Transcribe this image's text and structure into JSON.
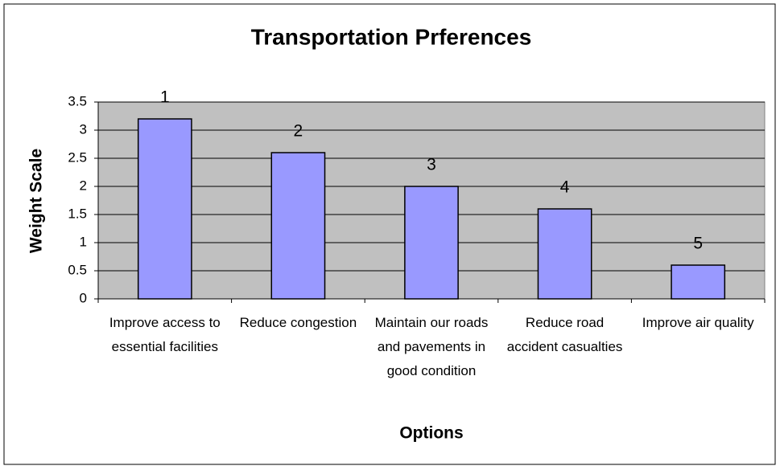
{
  "chart_data": {
    "type": "bar",
    "title": "Transportation Prferences",
    "x_label": "Options",
    "y_label": "Weight Scale",
    "categories": [
      "Improve access to essential facilities",
      "Reduce congestion",
      "Maintain our roads and pavements in good condition",
      "Reduce road accident casualties",
      "Improve air quality"
    ],
    "values": [
      3.2,
      2.6,
      2.0,
      1.6,
      0.6
    ],
    "rank_labels": [
      "1",
      "2",
      "3",
      "4",
      "5"
    ],
    "color": "#9999ff",
    "plot_background": "#c0c0c0",
    "ylim": [
      0,
      3.5
    ],
    "yticks": [
      0,
      0.5,
      1,
      1.5,
      2,
      2.5,
      3,
      3.5
    ],
    "grid": true
  }
}
